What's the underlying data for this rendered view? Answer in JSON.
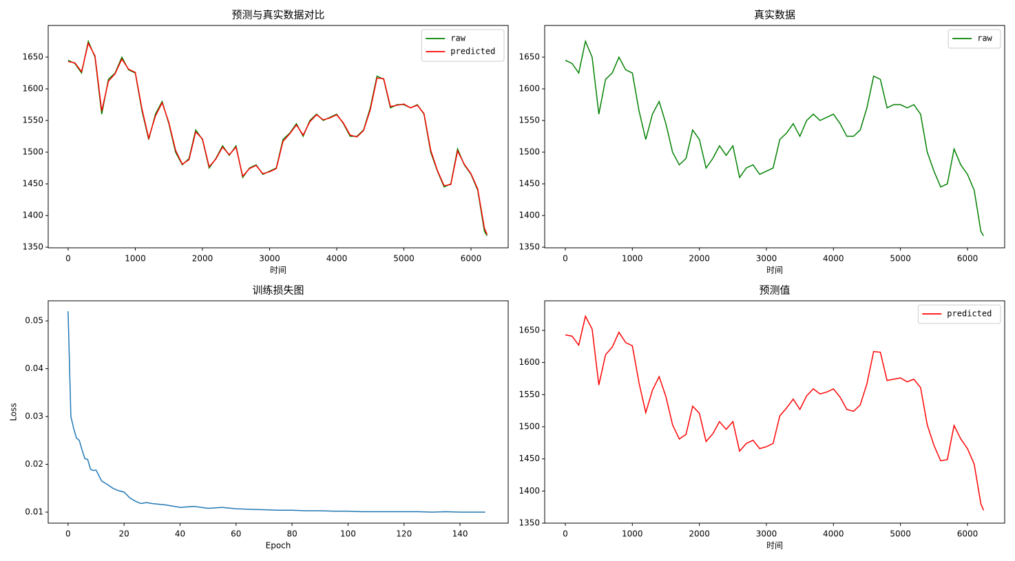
{
  "chart_data": [
    {
      "type": "line",
      "title": "预测与真实数据对比",
      "xlabel": "时间",
      "x": [
        0,
        100,
        200,
        300,
        400,
        500,
        600,
        700,
        800,
        900,
        1000,
        1100,
        1200,
        1300,
        1400,
        1500,
        1600,
        1700,
        1800,
        1900,
        2000,
        2100,
        2200,
        2300,
        2400,
        2500,
        2600,
        2700,
        2800,
        2900,
        3000,
        3100,
        3200,
        3300,
        3400,
        3500,
        3600,
        3700,
        3800,
        3900,
        4000,
        4100,
        4200,
        4300,
        4400,
        4500,
        4600,
        4700,
        4800,
        4900,
        5000,
        5100,
        5200,
        5300,
        5400,
        5500,
        5600,
        5700,
        5800,
        5900,
        6000,
        6100,
        6200,
        6240
      ],
      "series": [
        {
          "name": "raw",
          "color": "#008000",
          "values": [
            1645,
            1640,
            1625,
            1675,
            1650,
            1560,
            1615,
            1625,
            1650,
            1630,
            1625,
            1565,
            1520,
            1560,
            1580,
            1545,
            1500,
            1480,
            1490,
            1535,
            1520,
            1475,
            1490,
            1510,
            1495,
            1510,
            1460,
            1475,
            1480,
            1465,
            1470,
            1475,
            1520,
            1530,
            1545,
            1525,
            1550,
            1560,
            1550,
            1555,
            1560,
            1545,
            1525,
            1525,
            1535,
            1570,
            1620,
            1615,
            1570,
            1575,
            1575,
            1570,
            1575,
            1560,
            1500,
            1470,
            1445,
            1450,
            1505,
            1480,
            1465,
            1440,
            1375,
            1368
          ]
        },
        {
          "name": "predicted",
          "color": "#ff0000",
          "values": [
            1643,
            1641,
            1627,
            1672,
            1652,
            1565,
            1612,
            1624,
            1647,
            1631,
            1626,
            1568,
            1522,
            1557,
            1578,
            1547,
            1503,
            1481,
            1488,
            1532,
            1521,
            1477,
            1489,
            1508,
            1496,
            1508,
            1462,
            1474,
            1479,
            1466,
            1469,
            1474,
            1517,
            1529,
            1543,
            1527,
            1548,
            1559,
            1551,
            1554,
            1559,
            1546,
            1527,
            1524,
            1534,
            1567,
            1617,
            1616,
            1572,
            1574,
            1576,
            1570,
            1574,
            1561,
            1503,
            1471,
            1447,
            1449,
            1502,
            1481,
            1466,
            1442,
            1380,
            1370
          ]
        }
      ],
      "xlim": [
        -297,
        6554
      ],
      "xticks": [
        0,
        1000,
        2000,
        3000,
        4000,
        5000,
        6000
      ],
      "ylim": [
        1349,
        1700
      ],
      "yticks": [
        1350,
        1400,
        1450,
        1500,
        1550,
        1600,
        1650
      ],
      "legend": "upper right"
    },
    {
      "type": "line",
      "title": "真实数据",
      "xlabel": "时间",
      "x": [
        0,
        100,
        200,
        300,
        400,
        500,
        600,
        700,
        800,
        900,
        1000,
        1100,
        1200,
        1300,
        1400,
        1500,
        1600,
        1700,
        1800,
        1900,
        2000,
        2100,
        2200,
        2300,
        2400,
        2500,
        2600,
        2700,
        2800,
        2900,
        3000,
        3100,
        3200,
        3300,
        3400,
        3500,
        3600,
        3700,
        3800,
        3900,
        4000,
        4100,
        4200,
        4300,
        4400,
        4500,
        4600,
        4700,
        4800,
        4900,
        5000,
        5100,
        5200,
        5300,
        5400,
        5500,
        5600,
        5700,
        5800,
        5900,
        6000,
        6100,
        6200,
        6240
      ],
      "series": [
        {
          "name": "raw",
          "color": "#008000",
          "values": [
            1645,
            1640,
            1625,
            1675,
            1650,
            1560,
            1615,
            1625,
            1650,
            1630,
            1625,
            1565,
            1520,
            1560,
            1580,
            1545,
            1500,
            1480,
            1490,
            1535,
            1520,
            1475,
            1490,
            1510,
            1495,
            1510,
            1460,
            1475,
            1480,
            1465,
            1470,
            1475,
            1520,
            1530,
            1545,
            1525,
            1550,
            1560,
            1550,
            1555,
            1560,
            1545,
            1525,
            1525,
            1535,
            1570,
            1620,
            1615,
            1570,
            1575,
            1575,
            1570,
            1575,
            1560,
            1500,
            1470,
            1445,
            1450,
            1505,
            1480,
            1465,
            1440,
            1375,
            1368
          ]
        }
      ],
      "xlim": [
        -308,
        6555
      ],
      "xticks": [
        0,
        1000,
        2000,
        3000,
        4000,
        5000,
        6000
      ],
      "ylim": [
        1349,
        1700
      ],
      "yticks": [
        1350,
        1400,
        1450,
        1500,
        1550,
        1600,
        1650
      ],
      "legend": "upper right"
    },
    {
      "type": "line",
      "title": "训练损失图",
      "xlabel": "Epoch",
      "ylabel": "Loss",
      "x": [
        0,
        1,
        2,
        3,
        4,
        5,
        6,
        7,
        8,
        9,
        10,
        12,
        14,
        16,
        18,
        20,
        22,
        24,
        26,
        28,
        30,
        35,
        40,
        45,
        50,
        55,
        60,
        65,
        70,
        75,
        80,
        85,
        90,
        95,
        100,
        105,
        110,
        115,
        120,
        125,
        130,
        135,
        140,
        145,
        149
      ],
      "series": [
        {
          "color": "#1f77b4",
          "values": [
            0.052,
            0.03,
            0.0275,
            0.0255,
            0.025,
            0.023,
            0.0212,
            0.021,
            0.019,
            0.0187,
            0.0188,
            0.0165,
            0.0158,
            0.015,
            0.0145,
            0.0142,
            0.013,
            0.0123,
            0.0118,
            0.012,
            0.0118,
            0.0115,
            0.011,
            0.0112,
            0.0108,
            0.011,
            0.0107,
            0.0106,
            0.0105,
            0.0104,
            0.0104,
            0.0103,
            0.0103,
            0.0102,
            0.0102,
            0.0101,
            0.0101,
            0.0101,
            0.0101,
            0.0101,
            0.01,
            0.0101,
            0.01,
            0.01,
            0.01
          ]
        }
      ],
      "xlim": [
        -7.1,
        157.2
      ],
      "xticks": [
        0,
        20,
        40,
        60,
        80,
        100,
        120,
        140
      ],
      "ylim": [
        0.0077,
        0.0542
      ],
      "yticks": [
        0.01,
        0.02,
        0.03,
        0.04,
        0.05
      ]
    },
    {
      "type": "line",
      "title": "预测值",
      "xlabel": "时间",
      "x": [
        0,
        100,
        200,
        300,
        400,
        500,
        600,
        700,
        800,
        900,
        1000,
        1100,
        1200,
        1300,
        1400,
        1500,
        1600,
        1700,
        1800,
        1900,
        2000,
        2100,
        2200,
        2300,
        2400,
        2500,
        2600,
        2700,
        2800,
        2900,
        3000,
        3100,
        3200,
        3300,
        3400,
        3500,
        3600,
        3700,
        3800,
        3900,
        4000,
        4100,
        4200,
        4300,
        4400,
        4500,
        4600,
        4700,
        4800,
        4900,
        5000,
        5100,
        5200,
        5300,
        5400,
        5500,
        5600,
        5700,
        5800,
        5900,
        6000,
        6100,
        6200,
        6240
      ],
      "series": [
        {
          "name": "predicted",
          "color": "#ff0000",
          "values": [
            1643,
            1641,
            1627,
            1672,
            1652,
            1565,
            1612,
            1624,
            1647,
            1631,
            1626,
            1568,
            1522,
            1557,
            1578,
            1547,
            1503,
            1481,
            1488,
            1532,
            1521,
            1477,
            1489,
            1508,
            1496,
            1508,
            1462,
            1474,
            1479,
            1466,
            1469,
            1474,
            1517,
            1529,
            1543,
            1527,
            1548,
            1559,
            1551,
            1554,
            1559,
            1546,
            1527,
            1524,
            1534,
            1567,
            1617,
            1616,
            1572,
            1574,
            1576,
            1570,
            1574,
            1561,
            1503,
            1471,
            1447,
            1449,
            1502,
            1481,
            1466,
            1442,
            1380,
            1370
          ]
        }
      ],
      "xlim": [
        -308,
        6555
      ],
      "xticks": [
        0,
        1000,
        2000,
        3000,
        4000,
        5000,
        6000
      ],
      "ylim": [
        1350,
        1696
      ],
      "yticks": [
        1350,
        1400,
        1450,
        1500,
        1550,
        1600,
        1650
      ],
      "legend": "upper right"
    }
  ]
}
